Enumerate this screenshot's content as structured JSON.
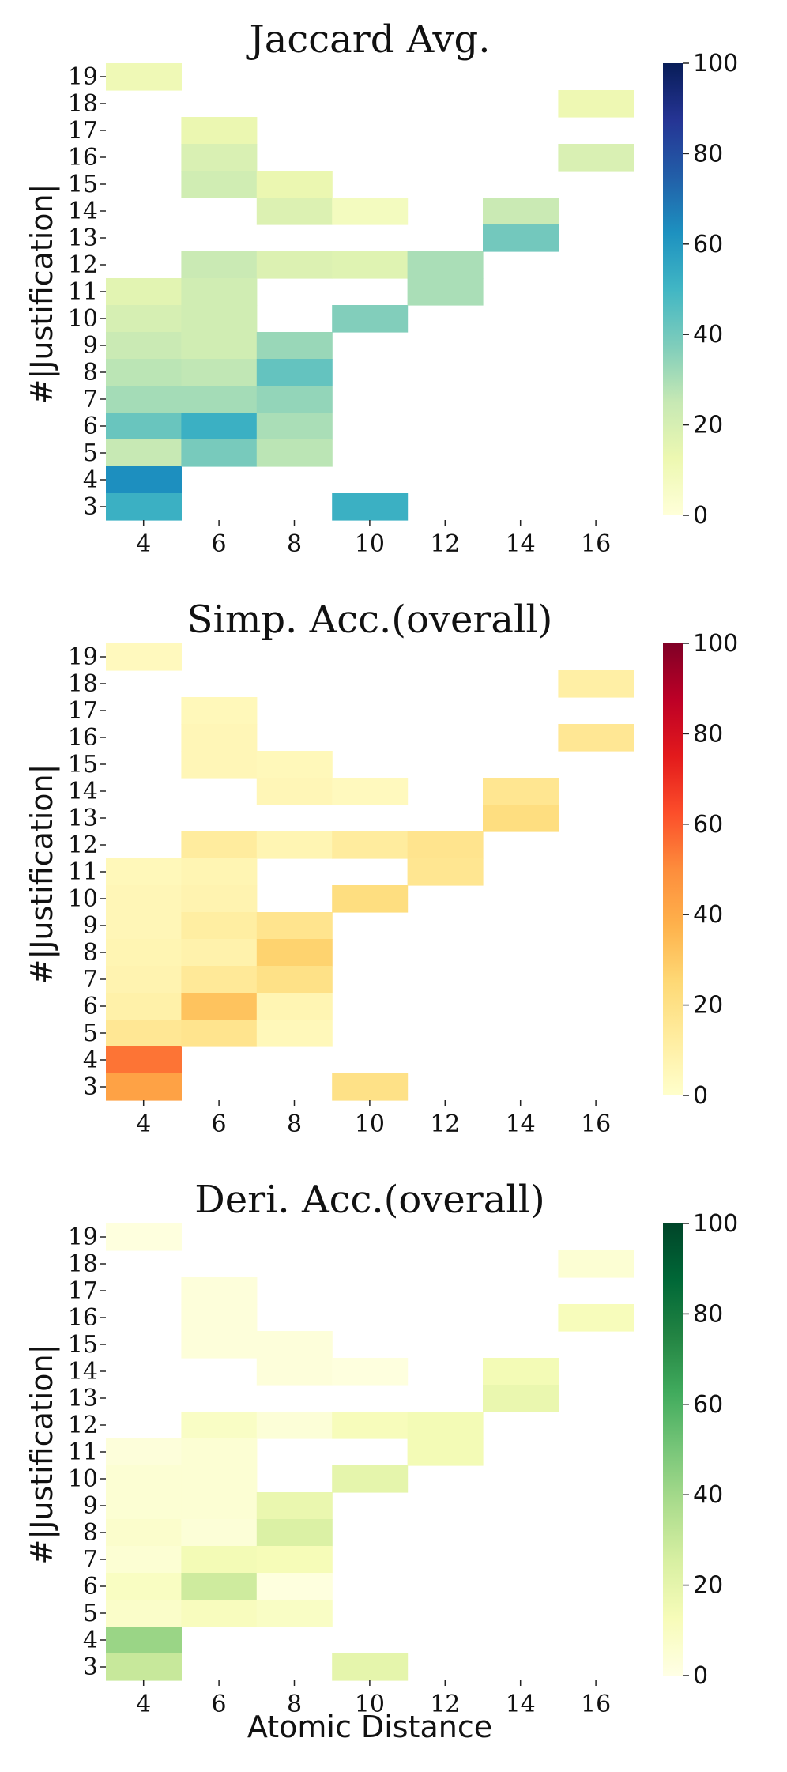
{
  "chart_data": [
    {
      "type": "heatmap",
      "title": "Jaccard Avg.",
      "xlabel": "",
      "ylabel": "#|Justification|",
      "x_tick_labels": [
        "4",
        "6",
        "8",
        "10",
        "12",
        "14",
        "16"
      ],
      "y_tick_labels": [
        "19",
        "18",
        "17",
        "16",
        "15",
        "14",
        "13",
        "12",
        "11",
        "10",
        "9",
        "8",
        "7",
        "6",
        "5",
        "4",
        "3"
      ],
      "colorbar_ticks": [
        "0",
        "20",
        "40",
        "60",
        "80",
        "100"
      ],
      "colorbar_range": [
        0,
        100
      ],
      "colormap": "YlGnBu",
      "colormap_stops": [
        "#ffffd9",
        "#edf8b1",
        "#c7e9b4",
        "#7fcdbb",
        "#41b6c4",
        "#1d91c0",
        "#225ea8",
        "#253494",
        "#081d58"
      ],
      "cells": [
        {
          "x": 4,
          "y": 19,
          "v": 11
        },
        {
          "x": 4,
          "y": 11,
          "v": 16
        },
        {
          "x": 4,
          "y": 10,
          "v": 20
        },
        {
          "x": 4,
          "y": 9,
          "v": 24
        },
        {
          "x": 4,
          "y": 8,
          "v": 27
        },
        {
          "x": 4,
          "y": 7,
          "v": 31
        },
        {
          "x": 4,
          "y": 6,
          "v": 42
        },
        {
          "x": 4,
          "y": 5,
          "v": 25
        },
        {
          "x": 4,
          "y": 4,
          "v": 63
        },
        {
          "x": 4,
          "y": 3,
          "v": 52
        },
        {
          "x": 6,
          "y": 17,
          "v": 13
        },
        {
          "x": 6,
          "y": 16,
          "v": 19
        },
        {
          "x": 6,
          "y": 15,
          "v": 22
        },
        {
          "x": 6,
          "y": 12,
          "v": 24
        },
        {
          "x": 6,
          "y": 11,
          "v": 22
        },
        {
          "x": 6,
          "y": 10,
          "v": 22
        },
        {
          "x": 6,
          "y": 9,
          "v": 22
        },
        {
          "x": 6,
          "y": 8,
          "v": 26
        },
        {
          "x": 6,
          "y": 7,
          "v": 31
        },
        {
          "x": 6,
          "y": 6,
          "v": 52
        },
        {
          "x": 6,
          "y": 5,
          "v": 39
        },
        {
          "x": 8,
          "y": 15,
          "v": 13
        },
        {
          "x": 8,
          "y": 14,
          "v": 18
        },
        {
          "x": 8,
          "y": 12,
          "v": 18
        },
        {
          "x": 8,
          "y": 9,
          "v": 33
        },
        {
          "x": 8,
          "y": 8,
          "v": 43
        },
        {
          "x": 8,
          "y": 7,
          "v": 34
        },
        {
          "x": 8,
          "y": 6,
          "v": 30
        },
        {
          "x": 8,
          "y": 5,
          "v": 27
        },
        {
          "x": 10,
          "y": 14,
          "v": 8
        },
        {
          "x": 10,
          "y": 12,
          "v": 17
        },
        {
          "x": 10,
          "y": 10,
          "v": 37
        },
        {
          "x": 10,
          "y": 3,
          "v": 52
        },
        {
          "x": 12,
          "y": 12,
          "v": 30
        },
        {
          "x": 12,
          "y": 11,
          "v": 30
        },
        {
          "x": 14,
          "y": 14,
          "v": 24
        },
        {
          "x": 14,
          "y": 13,
          "v": 40
        },
        {
          "x": 16,
          "y": 18,
          "v": 12
        },
        {
          "x": 16,
          "y": 16,
          "v": 19
        }
      ]
    },
    {
      "type": "heatmap",
      "title": "Simp. Acc.(overall)",
      "xlabel": "",
      "ylabel": "#|Justification|",
      "x_tick_labels": [
        "4",
        "6",
        "8",
        "10",
        "12",
        "14",
        "16"
      ],
      "y_tick_labels": [
        "19",
        "18",
        "17",
        "16",
        "15",
        "14",
        "13",
        "12",
        "11",
        "10",
        "9",
        "8",
        "7",
        "6",
        "5",
        "4",
        "3"
      ],
      "colorbar_ticks": [
        "0",
        "20",
        "40",
        "60",
        "80",
        "100"
      ],
      "colorbar_range": [
        0,
        100
      ],
      "colormap": "YlOrRd",
      "colormap_stops": [
        "#ffffcc",
        "#ffeda0",
        "#fed976",
        "#feb24c",
        "#fd8d3c",
        "#fc4e2a",
        "#e31a1c",
        "#bd0026",
        "#800026"
      ],
      "cells": [
        {
          "x": 4,
          "y": 19,
          "v": 4
        },
        {
          "x": 4,
          "y": 11,
          "v": 5
        },
        {
          "x": 4,
          "y": 10,
          "v": 6
        },
        {
          "x": 4,
          "y": 9,
          "v": 6
        },
        {
          "x": 4,
          "y": 8,
          "v": 7
        },
        {
          "x": 4,
          "y": 7,
          "v": 8
        },
        {
          "x": 4,
          "y": 6,
          "v": 10
        },
        {
          "x": 4,
          "y": 5,
          "v": 16
        },
        {
          "x": 4,
          "y": 4,
          "v": 55
        },
        {
          "x": 4,
          "y": 3,
          "v": 43
        },
        {
          "x": 6,
          "y": 17,
          "v": 5
        },
        {
          "x": 6,
          "y": 16,
          "v": 6
        },
        {
          "x": 6,
          "y": 15,
          "v": 6
        },
        {
          "x": 6,
          "y": 12,
          "v": 13
        },
        {
          "x": 6,
          "y": 11,
          "v": 7
        },
        {
          "x": 6,
          "y": 10,
          "v": 8
        },
        {
          "x": 6,
          "y": 9,
          "v": 12
        },
        {
          "x": 6,
          "y": 8,
          "v": 9
        },
        {
          "x": 6,
          "y": 7,
          "v": 15
        },
        {
          "x": 6,
          "y": 6,
          "v": 32
        },
        {
          "x": 6,
          "y": 5,
          "v": 18
        },
        {
          "x": 8,
          "y": 15,
          "v": 5
        },
        {
          "x": 8,
          "y": 14,
          "v": 6
        },
        {
          "x": 8,
          "y": 12,
          "v": 7
        },
        {
          "x": 8,
          "y": 9,
          "v": 18
        },
        {
          "x": 8,
          "y": 8,
          "v": 27
        },
        {
          "x": 8,
          "y": 7,
          "v": 20
        },
        {
          "x": 8,
          "y": 6,
          "v": 7
        },
        {
          "x": 8,
          "y": 5,
          "v": 5
        },
        {
          "x": 10,
          "y": 14,
          "v": 4
        },
        {
          "x": 10,
          "y": 12,
          "v": 13
        },
        {
          "x": 10,
          "y": 10,
          "v": 22
        },
        {
          "x": 10,
          "y": 3,
          "v": 20
        },
        {
          "x": 12,
          "y": 12,
          "v": 18
        },
        {
          "x": 12,
          "y": 11,
          "v": 17
        },
        {
          "x": 14,
          "y": 14,
          "v": 17
        },
        {
          "x": 14,
          "y": 13,
          "v": 22
        },
        {
          "x": 16,
          "y": 18,
          "v": 11
        },
        {
          "x": 16,
          "y": 16,
          "v": 16
        }
      ]
    },
    {
      "type": "heatmap",
      "title": "Deri. Acc.(overall)",
      "xlabel": "Atomic Distance",
      "ylabel": "#|Justification|",
      "x_tick_labels": [
        "4",
        "6",
        "8",
        "10",
        "12",
        "14",
        "16"
      ],
      "y_tick_labels": [
        "19",
        "18",
        "17",
        "16",
        "15",
        "14",
        "13",
        "12",
        "11",
        "10",
        "9",
        "8",
        "7",
        "6",
        "5",
        "4",
        "3"
      ],
      "colorbar_ticks": [
        "0",
        "20",
        "40",
        "60",
        "80",
        "100"
      ],
      "colorbar_range": [
        0,
        100
      ],
      "colormap": "YlGn",
      "colormap_stops": [
        "#ffffe5",
        "#f7fcb9",
        "#d9f0a3",
        "#addd8e",
        "#78c679",
        "#41ab5d",
        "#238443",
        "#006837",
        "#004529"
      ],
      "cells": [
        {
          "x": 4,
          "y": 19,
          "v": 2
        },
        {
          "x": 4,
          "y": 11,
          "v": 3
        },
        {
          "x": 4,
          "y": 10,
          "v": 5
        },
        {
          "x": 4,
          "y": 9,
          "v": 5
        },
        {
          "x": 4,
          "y": 8,
          "v": 7
        },
        {
          "x": 4,
          "y": 7,
          "v": 5
        },
        {
          "x": 4,
          "y": 6,
          "v": 10
        },
        {
          "x": 4,
          "y": 5,
          "v": 8
        },
        {
          "x": 4,
          "y": 4,
          "v": 42
        },
        {
          "x": 4,
          "y": 3,
          "v": 30
        },
        {
          "x": 6,
          "y": 17,
          "v": 3
        },
        {
          "x": 6,
          "y": 16,
          "v": 3
        },
        {
          "x": 6,
          "y": 15,
          "v": 3
        },
        {
          "x": 6,
          "y": 12,
          "v": 9
        },
        {
          "x": 6,
          "y": 11,
          "v": 5
        },
        {
          "x": 6,
          "y": 10,
          "v": 5
        },
        {
          "x": 6,
          "y": 9,
          "v": 5
        },
        {
          "x": 6,
          "y": 8,
          "v": 4
        },
        {
          "x": 6,
          "y": 7,
          "v": 14
        },
        {
          "x": 6,
          "y": 6,
          "v": 28
        },
        {
          "x": 6,
          "y": 5,
          "v": 11
        },
        {
          "x": 8,
          "y": 15,
          "v": 3
        },
        {
          "x": 8,
          "y": 14,
          "v": 3
        },
        {
          "x": 8,
          "y": 12,
          "v": 4
        },
        {
          "x": 8,
          "y": 9,
          "v": 18
        },
        {
          "x": 8,
          "y": 8,
          "v": 24
        },
        {
          "x": 8,
          "y": 7,
          "v": 13
        },
        {
          "x": 8,
          "y": 6,
          "v": 2
        },
        {
          "x": 8,
          "y": 5,
          "v": 9
        },
        {
          "x": 10,
          "y": 14,
          "v": 2
        },
        {
          "x": 10,
          "y": 12,
          "v": 12
        },
        {
          "x": 10,
          "y": 10,
          "v": 20
        },
        {
          "x": 10,
          "y": 3,
          "v": 20
        },
        {
          "x": 12,
          "y": 12,
          "v": 14
        },
        {
          "x": 12,
          "y": 11,
          "v": 14
        },
        {
          "x": 14,
          "y": 14,
          "v": 14
        },
        {
          "x": 14,
          "y": 13,
          "v": 18
        },
        {
          "x": 16,
          "y": 18,
          "v": 5
        },
        {
          "x": 16,
          "y": 16,
          "v": 12
        }
      ]
    }
  ]
}
